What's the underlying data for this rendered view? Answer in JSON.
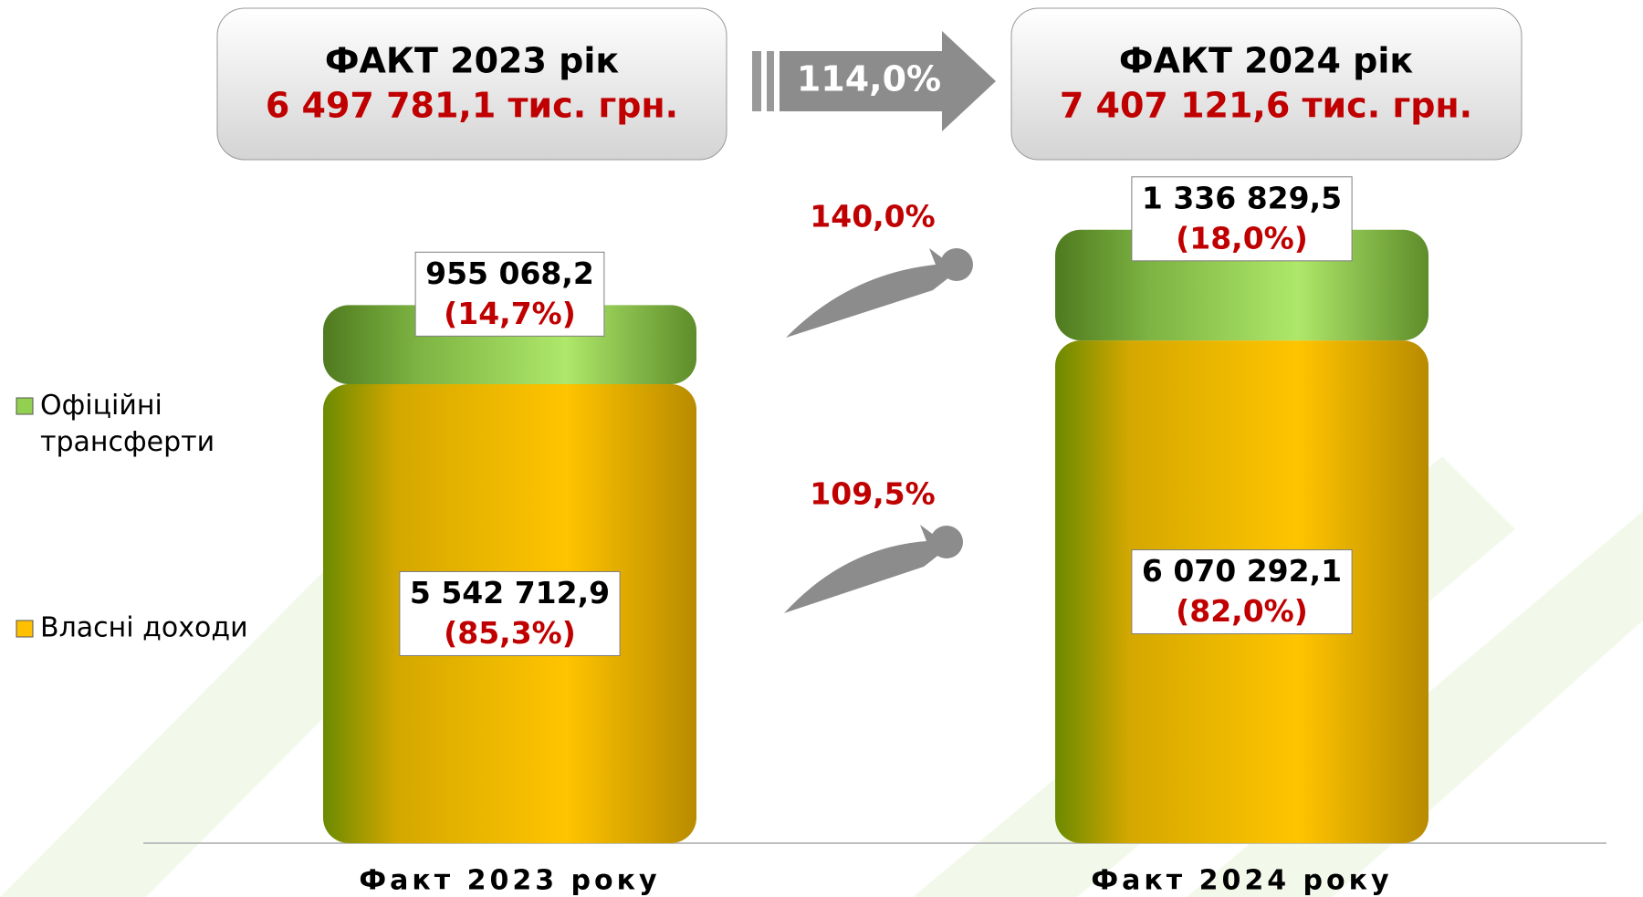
{
  "chart_data": {
    "type": "bar",
    "stacked": true,
    "categories": [
      "Факт 2023 року",
      "Факт 2024 року"
    ],
    "series": [
      {
        "name": "Власні доходи",
        "color": "#ffc000",
        "values": [
          5542712.9,
          6070292.1
        ],
        "value_labels": [
          "5 542 712,9",
          "6 070 292,1"
        ],
        "share_labels": [
          "(85,3%)",
          "(82,0%)"
        ]
      },
      {
        "name": "Офіційні трансферти",
        "color": "#92d050",
        "values": [
          955068.2,
          1336829.5
        ],
        "value_labels": [
          "955 068,2",
          "1 336 829,5"
        ],
        "share_labels": [
          "(14,7%)",
          "(18,0%)"
        ]
      }
    ],
    "ylim": [
      0,
      8000000
    ]
  },
  "annotations": {
    "header_left": {
      "title": "ФАКТ 2023 рік",
      "total": "6 497 781,1 тис. грн."
    },
    "header_right": {
      "title": "ФАКТ 2024 рік",
      "total": "7 407 121,6 тис. грн."
    },
    "growth_total": "114,0%",
    "growth_transfers": "140,0%",
    "growth_own": "109,5%"
  }
}
